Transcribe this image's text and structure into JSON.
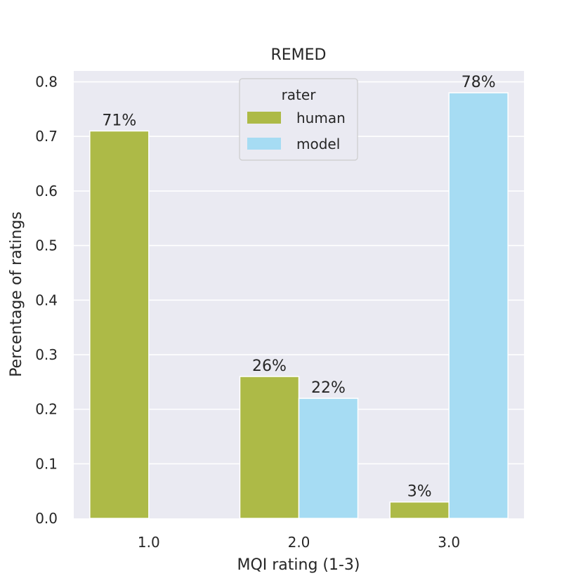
{
  "chart_data": {
    "type": "bar",
    "title": "REMED",
    "xlabel": "MQI rating (1-3)",
    "ylabel": "Percentage of ratings",
    "categories": [
      "1.0",
      "2.0",
      "3.0"
    ],
    "series": [
      {
        "name": "human",
        "color": "#adba47",
        "values": [
          0.71,
          0.26,
          0.03
        ],
        "labels": [
          "71%",
          "26%",
          "3%"
        ]
      },
      {
        "name": "model",
        "color": "#a6dcf3",
        "values": [
          0.0,
          0.22,
          0.78
        ],
        "labels": [
          "",
          "22%",
          "78%"
        ]
      }
    ],
    "ylim": [
      0,
      0.82
    ],
    "yticks": [
      "0.0",
      "0.1",
      "0.2",
      "0.3",
      "0.4",
      "0.5",
      "0.6",
      "0.7",
      "0.8"
    ],
    "legend": {
      "title": "rater",
      "position": "top-center"
    },
    "grid": true,
    "background": "#eaeaf2"
  }
}
